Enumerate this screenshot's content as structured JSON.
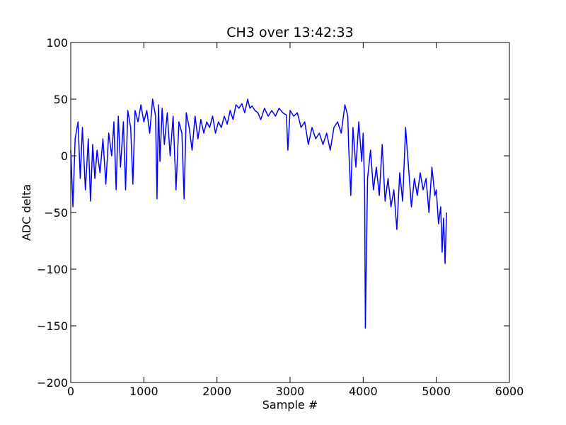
{
  "chart_data": {
    "type": "line",
    "title": "CH3 over 13:42:33",
    "xlabel": "Sample #",
    "ylabel": "ADC delta",
    "xlim": [
      0,
      6000
    ],
    "ylim": [
      -200,
      100
    ],
    "xticks": [
      "0",
      "1000",
      "2000",
      "3000",
      "4000",
      "5000",
      "6000"
    ],
    "yticks": [
      "100",
      "50",
      "0",
      "−50",
      "−100",
      "−150",
      "−200"
    ],
    "grid": false,
    "series": [
      {
        "color": "#0000ff",
        "x": [
          0,
          30,
          60,
          100,
          130,
          160,
          200,
          240,
          270,
          300,
          330,
          360,
          400,
          440,
          480,
          520,
          560,
          590,
          620,
          650,
          680,
          720,
          750,
          780,
          820,
          850,
          880,
          920,
          960,
          1000,
          1040,
          1080,
          1120,
          1160,
          1180,
          1200,
          1220,
          1250,
          1280,
          1320,
          1360,
          1400,
          1440,
          1480,
          1520,
          1550,
          1580,
          1620,
          1660,
          1700,
          1740,
          1780,
          1820,
          1860,
          1900,
          1940,
          1980,
          2020,
          2060,
          2100,
          2140,
          2180,
          2220,
          2260,
          2300,
          2340,
          2380,
          2420,
          2450,
          2480,
          2520,
          2560,
          2600,
          2650,
          2700,
          2750,
          2800,
          2850,
          2900,
          2950,
          2970,
          3000,
          3050,
          3100,
          3150,
          3200,
          3250,
          3300,
          3350,
          3400,
          3450,
          3500,
          3550,
          3600,
          3650,
          3700,
          3750,
          3790,
          3800,
          3830,
          3860,
          3900,
          3940,
          3980,
          4000,
          4020,
          4030,
          4060,
          4100,
          4140,
          4180,
          4220,
          4260,
          4300,
          4340,
          4380,
          4420,
          4460,
          4500,
          4540,
          4580,
          4620,
          4660,
          4700,
          4740,
          4780,
          4820,
          4860,
          4900,
          4940,
          4980,
          5000,
          5030,
          5060,
          5080,
          5100,
          5120,
          5140
        ],
        "y": [
          5,
          -45,
          15,
          30,
          -20,
          25,
          -30,
          15,
          -40,
          10,
          -20,
          5,
          -15,
          15,
          -25,
          20,
          0,
          30,
          -30,
          35,
          -10,
          30,
          -30,
          40,
          25,
          -25,
          40,
          30,
          45,
          30,
          40,
          20,
          50,
          35,
          -38,
          45,
          -5,
          42,
          10,
          38,
          0,
          35,
          -30,
          30,
          20,
          -38,
          38,
          25,
          5,
          35,
          15,
          32,
          20,
          30,
          25,
          35,
          20,
          30,
          25,
          35,
          28,
          40,
          32,
          45,
          42,
          46,
          38,
          50,
          42,
          44,
          40,
          38,
          32,
          42,
          35,
          40,
          35,
          42,
          38,
          36,
          5,
          40,
          35,
          38,
          25,
          30,
          10,
          25,
          15,
          20,
          10,
          20,
          5,
          25,
          30,
          20,
          45,
          35,
          10,
          -35,
          25,
          -10,
          30,
          -5,
          20,
          -30,
          -152,
          -20,
          5,
          -30,
          -10,
          -35,
          10,
          -40,
          -20,
          -45,
          -30,
          -65,
          -15,
          -40,
          25,
          -10,
          -45,
          -20,
          -35,
          -15,
          -30,
          -20,
          -50,
          -10,
          -35,
          -30,
          -60,
          -45,
          -85,
          -55,
          -95,
          -50
        ]
      }
    ]
  }
}
